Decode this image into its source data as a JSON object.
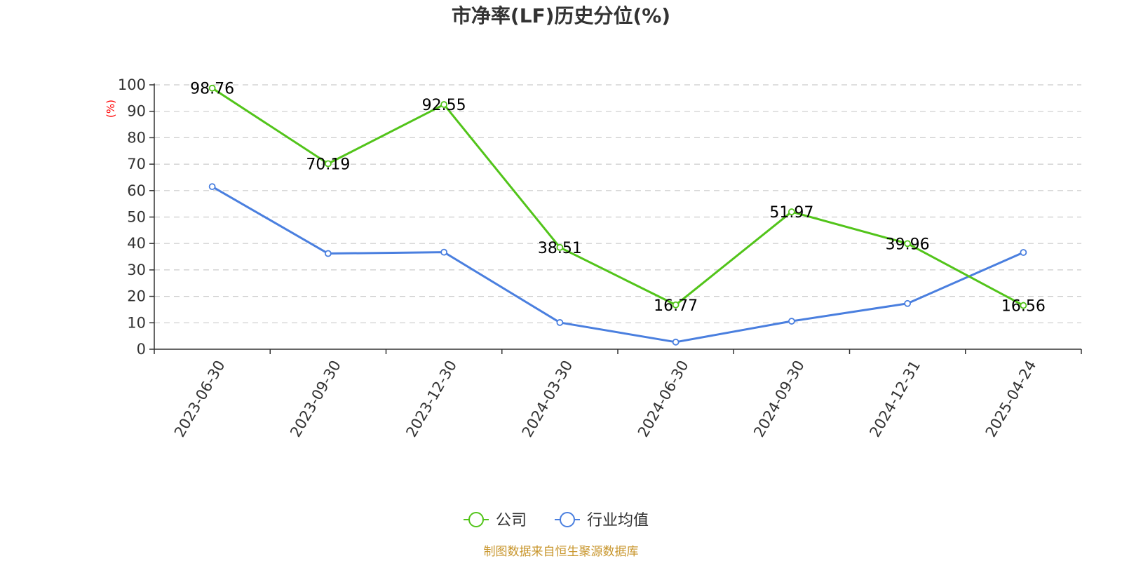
{
  "colors": {
    "company": "#52c41a",
    "industry": "#4a7fdf"
  },
  "source_note": "制图数据来自恒生聚源数据库",
  "chart_data": {
    "type": "line",
    "title": "市净率(LF)历史分位(%)",
    "ylabel": "(%)",
    "xlabel": "",
    "ylim": [
      0,
      100
    ],
    "yticks": [
      0,
      10,
      20,
      30,
      40,
      50,
      60,
      70,
      80,
      90,
      100
    ],
    "grid": true,
    "legend_position": "bottom-center",
    "categories": [
      "2023-06-30",
      "2023-09-30",
      "2023-12-30",
      "2024-03-30",
      "2024-06-30",
      "2024-09-30",
      "2024-12-31",
      "2025-04-24"
    ],
    "series": [
      {
        "name": "公司",
        "color": "#52c41a",
        "values": [
          98.76,
          70.19,
          92.55,
          38.51,
          16.77,
          51.97,
          39.96,
          16.56
        ],
        "value_labels": [
          "98.76",
          "70.19",
          "92.55",
          "38.51",
          "16.77",
          "51.97",
          "39.96",
          "16.56"
        ]
      },
      {
        "name": "行业均值",
        "color": "#4a7fdf",
        "values": [
          61.5,
          36.2,
          36.7,
          10.1,
          2.7,
          10.6,
          17.3,
          36.6
        ]
      }
    ]
  }
}
